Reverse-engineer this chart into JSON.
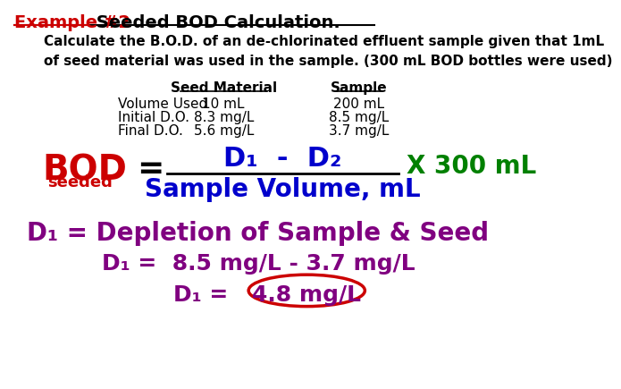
{
  "title_example": "Example #2",
  "title_rest": " Seeded BOD Calculation.",
  "subtitle": "Calculate the B.O.D. of an de-chlorinated effluent sample given that 1mL\nof seed material was used in the sample. (300 mL BOD bottles were used)",
  "table_col2_header": "Seed Material",
  "table_col3_header": "Sample",
  "row1_label": "Volume Used",
  "row1_col2": "10 mL",
  "row1_col3": "200 mL",
  "row2_label": "Initial D.O.",
  "row2_col2": "8.3 mg/L",
  "row2_col3": "8.5 mg/L",
  "row3_label": "Final D.O.",
  "row3_col2": "5.6 mg/L",
  "row3_col3": "3.7 mg/L",
  "formula_bod": "BOD",
  "formula_seeded": "seeded",
  "formula_numerator": "D₁  -  D₂",
  "formula_denominator": "Sample Volume, mL",
  "formula_multiplier": "X 300 mL",
  "depletion_line1": "D₁ = Depletion of Sample & Seed",
  "depletion_line2": "D₁ =  8.5 mg/L - 3.7 mg/L",
  "depletion_line3_pre": "D₁ = ",
  "depletion_line3_val": "4.8 mg/L",
  "color_red": "#CC0000",
  "color_blue": "#0000CC",
  "color_purple": "#800080",
  "color_green": "#008000",
  "color_black": "#000000",
  "background_color": "#FFFFFF"
}
